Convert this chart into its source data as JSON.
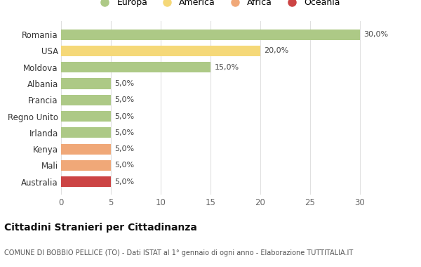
{
  "categories": [
    "Australia",
    "Mali",
    "Kenya",
    "Irlanda",
    "Regno Unito",
    "Francia",
    "Albania",
    "Moldova",
    "USA",
    "Romania"
  ],
  "values": [
    5.0,
    5.0,
    5.0,
    5.0,
    5.0,
    5.0,
    5.0,
    15.0,
    20.0,
    30.0
  ],
  "colors": [
    "#cc4444",
    "#f0a878",
    "#f0a878",
    "#adc986",
    "#adc986",
    "#adc986",
    "#adc986",
    "#adc986",
    "#f5d878",
    "#adc986"
  ],
  "legend": [
    {
      "label": "Europa",
      "color": "#adc986"
    },
    {
      "label": "America",
      "color": "#f5d878"
    },
    {
      "label": "Africa",
      "color": "#f0a878"
    },
    {
      "label": "Oceania",
      "color": "#cc4444"
    }
  ],
  "xlim": [
    0,
    30
  ],
  "xticks": [
    0,
    5,
    10,
    15,
    20,
    25,
    30
  ],
  "title": "Cittadini Stranieri per Cittadinanza",
  "subtitle": "COMUNE DI BOBBIO PELLICE (TO) - Dati ISTAT al 1° gennaio di ogni anno - Elaborazione TUTTITALIA.IT",
  "bg_color": "#ffffff",
  "grid_color": "#e0e0e0",
  "bar_labels": [
    "5,0%",
    "5,0%",
    "5,0%",
    "5,0%",
    "5,0%",
    "5,0%",
    "5,0%",
    "15,0%",
    "20,0%",
    "30,0%"
  ]
}
